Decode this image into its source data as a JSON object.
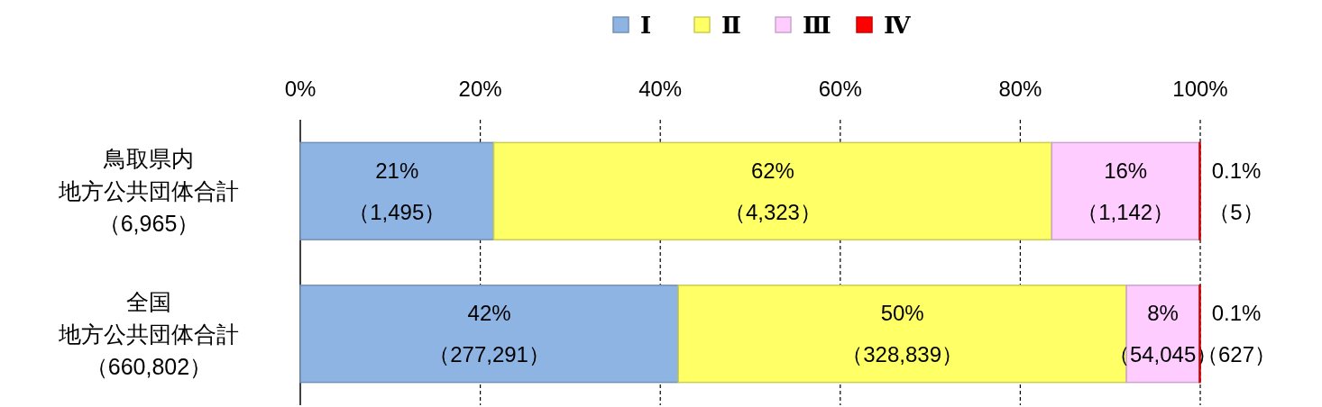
{
  "chart_data": {
    "type": "bar",
    "orientation": "horizontal",
    "stacked": true,
    "categories": [
      "鳥取県内地方公共団体合計（6,965）",
      "全国地方公共団体合計（660,802）"
    ],
    "series": [
      {
        "name": "Ⅰ",
        "color": "#8eb4e3",
        "values": [
          21.5,
          42.0
        ],
        "value_labels": [
          "21%\n（1,495）",
          "42%\n（277,291）"
        ]
      },
      {
        "name": "Ⅱ",
        "color": "#ffff66",
        "values": [
          62.0,
          49.8
        ],
        "value_labels": [
          "62%\n（4,323）",
          "50%\n（328,839）"
        ]
      },
      {
        "name": "Ⅲ",
        "color": "#ffccff",
        "values": [
          16.4,
          8.1
        ],
        "value_labels": [
          "16%\n（1,142）",
          "8%\n（54,045）"
        ]
      },
      {
        "name": "Ⅳ",
        "color": "#ff0000",
        "values": [
          0.1,
          0.1
        ],
        "value_labels": [
          "0.1%\n（5）",
          "0.1%\n（627）"
        ]
      }
    ],
    "xlim": [
      0,
      100
    ],
    "xticks": [
      {
        "value": 0,
        "label": "0%"
      },
      {
        "value": 20,
        "label": "20%"
      },
      {
        "value": 40,
        "label": "40%"
      },
      {
        "value": 60,
        "label": "60%"
      },
      {
        "value": 80,
        "label": "80%"
      },
      {
        "value": 100,
        "label": "100%"
      }
    ],
    "grid": "x",
    "legend": "top"
  }
}
